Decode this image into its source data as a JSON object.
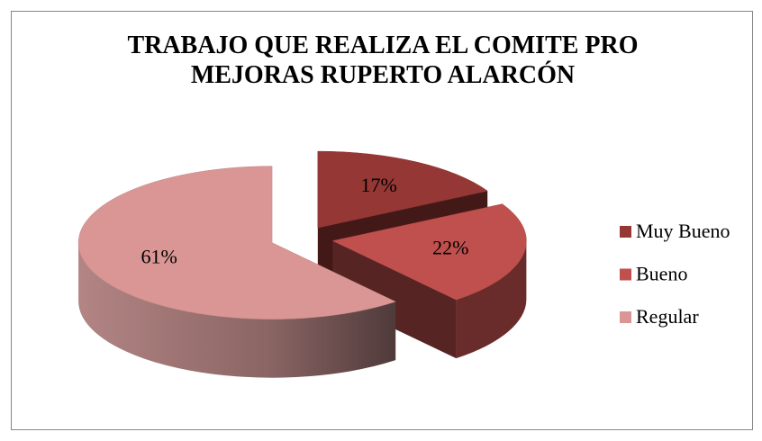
{
  "chart_data": {
    "type": "pie",
    "title": "TRABAJO QUE REALIZA EL COMITE PRO MEJORAS RUPERTO ALARCÓN",
    "categories": [
      "Muy Bueno",
      "Bueno",
      "Regular"
    ],
    "values": [
      17,
      22,
      61
    ],
    "value_labels": [
      "17%",
      "22%",
      "61%"
    ],
    "colors": [
      "#953735",
      "#c0504d",
      "#d99694"
    ],
    "legend": "right"
  }
}
